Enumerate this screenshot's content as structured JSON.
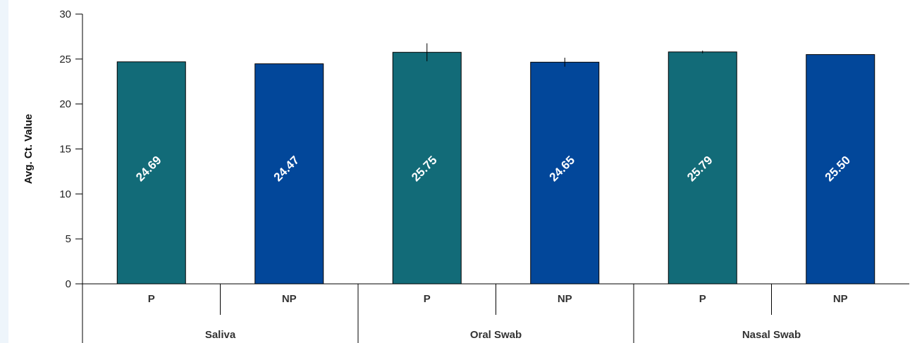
{
  "chart_data": {
    "type": "bar",
    "ylabel": "Avg. Ct. Value",
    "ylim": [
      0,
      30
    ],
    "yticks": [
      0,
      5,
      10,
      15,
      20,
      25,
      30
    ],
    "groups": [
      "Saliva",
      "Oral Swab",
      "Nasal Swab"
    ],
    "categories": [
      "P",
      "NP",
      "P",
      "NP",
      "P",
      "NP"
    ],
    "values": [
      24.69,
      24.47,
      25.75,
      24.65,
      25.79,
      25.5
    ],
    "value_labels": [
      "24.69",
      "24.47",
      "25.75",
      "24.65",
      "25.79",
      "25.50"
    ],
    "error": [
      0.0,
      0.0,
      1.0,
      0.5,
      0.15,
      0.0
    ],
    "colors": [
      "#126b78",
      "#02479a",
      "#126b78",
      "#02479a",
      "#126b78",
      "#02479a"
    ]
  }
}
